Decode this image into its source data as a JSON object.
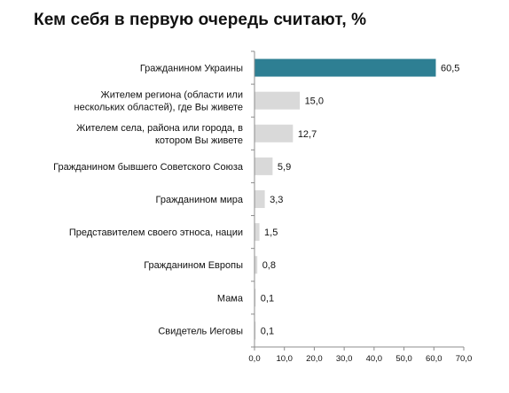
{
  "chart_data": {
    "type": "bar",
    "orientation": "horizontal",
    "title": "Кем себя в первую очередь считают, %",
    "categories": [
      [
        "Гражданином Украины"
      ],
      [
        "Жителем региона (области или",
        "нескольких областей), где Вы живете"
      ],
      [
        "Жителем села, района или города, в",
        "котором Вы живете"
      ],
      [
        "Гражданином бывшего Советского Союза"
      ],
      [
        "Гражданином мира"
      ],
      [
        "Представителем своего этноса, нации"
      ],
      [
        "Гражданином Европы"
      ],
      [
        "Мама"
      ],
      [
        "Свидетель Иеговы"
      ]
    ],
    "values": [
      60.5,
      15.0,
      12.7,
      5.9,
      3.3,
      1.5,
      0.8,
      0.1,
      0.1
    ],
    "value_labels": [
      "60,5",
      "15,0",
      "12,7",
      "5,9",
      "3,3",
      "1,5",
      "0,8",
      "0,1",
      "0,1"
    ],
    "xlim": [
      0,
      70
    ],
    "ticks": [
      0,
      10,
      20,
      30,
      40,
      50,
      60,
      70
    ],
    "tick_labels": [
      "0,0",
      "10,0",
      "20,0",
      "30,0",
      "40,0",
      "50,0",
      "60,0",
      "70,0"
    ],
    "colors": {
      "highlight": "#2e7f93",
      "bar": "#d9d9d9",
      "axis": "#8c8c8c"
    },
    "grid": false,
    "legend": "none"
  }
}
